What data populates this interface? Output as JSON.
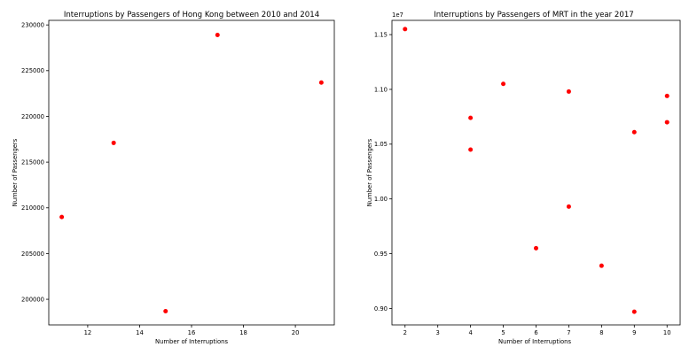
{
  "chart_data": [
    {
      "type": "scatter",
      "title": "Interruptions by Passengers of Hong Kong between 2010 and 2014",
      "xlabel": "Number of Interruptions",
      "ylabel": "Number of Passengers",
      "xlim": [
        10.5,
        21.5
      ],
      "ylim": [
        197200,
        230500
      ],
      "xticks": [
        12,
        14,
        16,
        18,
        20
      ],
      "yticks": [
        200000,
        205000,
        210000,
        215000,
        220000,
        225000,
        230000
      ],
      "xticklabels": [
        "12",
        "14",
        "16",
        "18",
        "20"
      ],
      "yticklabels": [
        "200000",
        "205000",
        "210000",
        "215000",
        "220000",
        "225000",
        "230000"
      ],
      "point_color": "#ff0000",
      "grid": false,
      "points": [
        {
          "x": 11,
          "y": 209000
        },
        {
          "x": 13,
          "y": 217100
        },
        {
          "x": 15,
          "y": 198700
        },
        {
          "x": 17,
          "y": 228900
        },
        {
          "x": 21,
          "y": 223700
        }
      ]
    },
    {
      "type": "scatter",
      "title": "Interruptions by Passengers of MRT in the year 2017",
      "xlabel": "Number of Interruptions",
      "ylabel": "Number of Passengers",
      "offset_text": "1e7",
      "xlim": [
        1.6,
        10.4
      ],
      "ylim": [
        0.885,
        1.163
      ],
      "xticks": [
        2,
        3,
        4,
        5,
        6,
        7,
        8,
        9,
        10
      ],
      "yticks": [
        0.9,
        0.95,
        1.0,
        1.05,
        1.1,
        1.15
      ],
      "xticklabels": [
        "2",
        "3",
        "4",
        "5",
        "6",
        "7",
        "8",
        "9",
        "10"
      ],
      "yticklabels": [
        "0.90",
        "0.95",
        "1.00",
        "1.05",
        "1.10",
        "1.15"
      ],
      "point_color": "#ff0000",
      "grid": false,
      "points": [
        {
          "x": 2,
          "y": 1.155
        },
        {
          "x": 4,
          "y": 1.074
        },
        {
          "x": 4,
          "y": 1.045
        },
        {
          "x": 5,
          "y": 1.105
        },
        {
          "x": 6,
          "y": 0.955
        },
        {
          "x": 7,
          "y": 1.098
        },
        {
          "x": 7,
          "y": 0.993
        },
        {
          "x": 8,
          "y": 0.939
        },
        {
          "x": 9,
          "y": 1.061
        },
        {
          "x": 9,
          "y": 0.897
        },
        {
          "x": 10,
          "y": 1.094
        },
        {
          "x": 10,
          "y": 1.07
        }
      ]
    }
  ]
}
